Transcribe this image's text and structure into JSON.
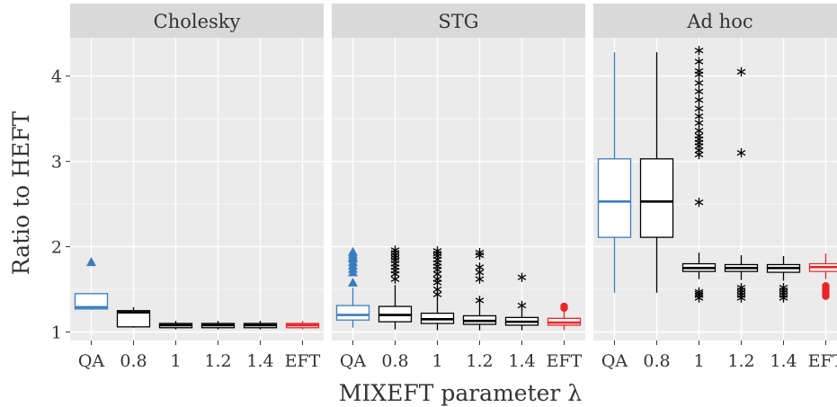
{
  "chart_data": {
    "type": "boxplot",
    "ylabel": "Ratio to HEFT",
    "xlabel": "MIXEFT parameter λ",
    "categories": [
      "QA",
      "0.8",
      "1",
      "1.2",
      "1.4",
      "EFT"
    ],
    "yticks": [
      1,
      2,
      3,
      4
    ],
    "ylim": [
      0.9,
      4.45
    ],
    "grid": true,
    "colors": {
      "QA": "#3a7dbf",
      "EFT": "#e8262c",
      "default": "#000000",
      "panel_bg": "#ebebeb",
      "grid": "#ffffff",
      "strip_bg": "#d9d9d9"
    },
    "panels": [
      {
        "title": "Cholesky",
        "boxes": [
          {
            "category": "QA",
            "lw": 1.26,
            "q1": 1.27,
            "med": 1.29,
            "q3": 1.45,
            "uw": 1.45,
            "outliers": [
              1.82
            ],
            "marker": "triangle"
          },
          {
            "category": "0.8",
            "lw": 1.05,
            "q1": 1.06,
            "med": 1.23,
            "q3": 1.25,
            "uw": 1.29,
            "outliers": [],
            "marker": "star"
          },
          {
            "category": "1",
            "lw": 1.03,
            "q1": 1.05,
            "med": 1.08,
            "q3": 1.1,
            "uw": 1.13,
            "outliers": [],
            "marker": "star"
          },
          {
            "category": "1.2",
            "lw": 1.03,
            "q1": 1.05,
            "med": 1.08,
            "q3": 1.1,
            "uw": 1.13,
            "outliers": [],
            "marker": "star"
          },
          {
            "category": "1.4",
            "lw": 1.03,
            "q1": 1.05,
            "med": 1.08,
            "q3": 1.1,
            "uw": 1.13,
            "outliers": [],
            "marker": "star"
          },
          {
            "category": "EFT",
            "lw": 1.03,
            "q1": 1.05,
            "med": 1.08,
            "q3": 1.1,
            "uw": 1.13,
            "outliers": [],
            "marker": "circle"
          }
        ]
      },
      {
        "title": "STG",
        "boxes": [
          {
            "category": "QA",
            "lw": 1.05,
            "q1": 1.14,
            "med": 1.2,
            "q3": 1.31,
            "uw": 1.52,
            "outliers": [
              1.58,
              1.7,
              1.74,
              1.78,
              1.82,
              1.86,
              1.88,
              1.91,
              1.94
            ],
            "marker": "triangle"
          },
          {
            "category": "0.8",
            "lw": 1.03,
            "q1": 1.12,
            "med": 1.2,
            "q3": 1.3,
            "uw": 1.55,
            "outliers": [
              1.62,
              1.68,
              1.72,
              1.76,
              1.8,
              1.84,
              1.87,
              1.9,
              1.93,
              1.96
            ],
            "marker": "star"
          },
          {
            "category": "1",
            "lw": 1.02,
            "q1": 1.1,
            "med": 1.15,
            "q3": 1.22,
            "uw": 1.4,
            "outliers": [
              1.44,
              1.5,
              1.58,
              1.62,
              1.68,
              1.73,
              1.77,
              1.81,
              1.85,
              1.89,
              1.92,
              1.95
            ],
            "marker": "star"
          },
          {
            "category": "1.2",
            "lw": 1.02,
            "q1": 1.09,
            "med": 1.13,
            "q3": 1.19,
            "uw": 1.33,
            "outliers": [
              1.37,
              1.62,
              1.7,
              1.76,
              1.9,
              1.93
            ],
            "marker": "star"
          },
          {
            "category": "1.4",
            "lw": 1.02,
            "q1": 1.08,
            "med": 1.12,
            "q3": 1.17,
            "uw": 1.28,
            "outliers": [
              1.31,
              1.64
            ],
            "marker": "star"
          },
          {
            "category": "EFT",
            "lw": 1.02,
            "q1": 1.08,
            "med": 1.11,
            "q3": 1.16,
            "uw": 1.25,
            "outliers": [
              1.28,
              1.3
            ],
            "marker": "circle"
          }
        ]
      },
      {
        "title": "Ad hoc",
        "boxes": [
          {
            "category": "QA",
            "lw": 1.46,
            "q1": 2.11,
            "med": 2.53,
            "q3": 3.03,
            "uw": 4.28,
            "outliers": [],
            "marker": "triangle"
          },
          {
            "category": "0.8",
            "lw": 1.46,
            "q1": 2.11,
            "med": 2.53,
            "q3": 3.03,
            "uw": 4.28,
            "outliers": [],
            "marker": "star"
          },
          {
            "category": "1",
            "lw": 1.62,
            "q1": 1.71,
            "med": 1.75,
            "q3": 1.8,
            "uw": 1.93,
            "outliers": [
              1.4,
              1.43,
              1.45,
              1.47,
              2.52,
              3.08,
              3.13,
              3.18,
              3.22,
              3.26,
              3.3,
              3.36,
              3.45,
              3.53,
              3.62,
              3.72,
              3.82,
              3.92,
              4.02,
              4.06,
              4.17,
              4.3
            ],
            "marker": "star"
          },
          {
            "category": "1.2",
            "lw": 1.61,
            "q1": 1.71,
            "med": 1.75,
            "q3": 1.79,
            "uw": 1.9,
            "outliers": [
              1.4,
              1.43,
              1.46,
              1.49,
              1.52,
              3.1,
              4.05
            ],
            "marker": "star"
          },
          {
            "category": "1.4",
            "lw": 1.6,
            "q1": 1.7,
            "med": 1.75,
            "q3": 1.79,
            "uw": 1.89,
            "outliers": [
              1.4,
              1.43,
              1.46,
              1.49,
              1.52
            ],
            "marker": "star"
          },
          {
            "category": "EFT",
            "lw": 1.62,
            "q1": 1.71,
            "med": 1.76,
            "q3": 1.8,
            "uw": 1.92,
            "outliers": [
              1.42,
              1.45,
              1.48,
              1.51,
              1.54
            ],
            "marker": "circle"
          }
        ]
      }
    ]
  }
}
